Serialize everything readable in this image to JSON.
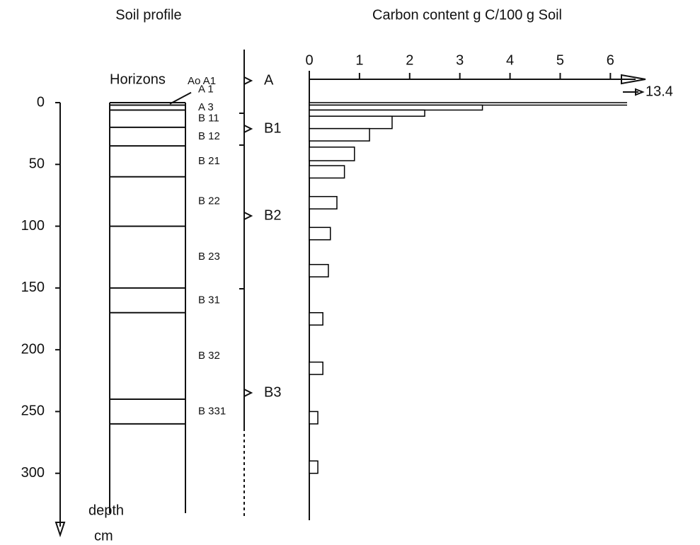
{
  "chart_data": {
    "type": "bar",
    "orientation": "horizontal",
    "title": "Carbon content   g C/100 g Soil",
    "y_label": "depth",
    "y_unit": "cm",
    "depth_top": [
      0,
      2,
      6,
      11,
      21,
      36,
      51,
      76,
      101,
      131,
      170,
      210,
      250,
      290
    ],
    "depth_bottom": [
      2,
      6,
      11,
      21,
      31,
      47,
      61,
      86,
      111,
      141,
      180,
      220,
      260,
      300
    ],
    "values": [
      13.4,
      3.45,
      2.3,
      1.65,
      1.2,
      0.9,
      0.7,
      0.55,
      0.42,
      0.38,
      0.27,
      0.27,
      0.17,
      0.17
    ],
    "value_labels": [
      "13.4",
      null,
      null,
      null,
      null,
      null,
      null,
      null,
      null,
      null,
      null,
      null,
      null,
      null
    ],
    "color": "#ffffff",
    "edgecolor": "#000000",
    "xlim": [
      0,
      6.7
    ],
    "xticks": [
      0,
      1,
      2,
      3,
      4,
      5,
      6
    ],
    "ylim": [
      0,
      350
    ],
    "yticks": [
      0,
      50,
      100,
      150,
      200,
      250,
      300
    ]
  },
  "soil_profile": {
    "title": "Soil profile",
    "horizons_label": "Horizons",
    "organic_label": "Ao A1",
    "boundaries": [
      0,
      2,
      6,
      20,
      35,
      60,
      100,
      150,
      170,
      240,
      260
    ],
    "horizons": [
      "A 1",
      "A 3",
      "B 11",
      "B 12",
      "B 21",
      "B 22",
      "B 23",
      "B 31",
      "B 32",
      "B 331"
    ],
    "main_horizons": [
      "A",
      "B1",
      "B2",
      "B3"
    ]
  }
}
